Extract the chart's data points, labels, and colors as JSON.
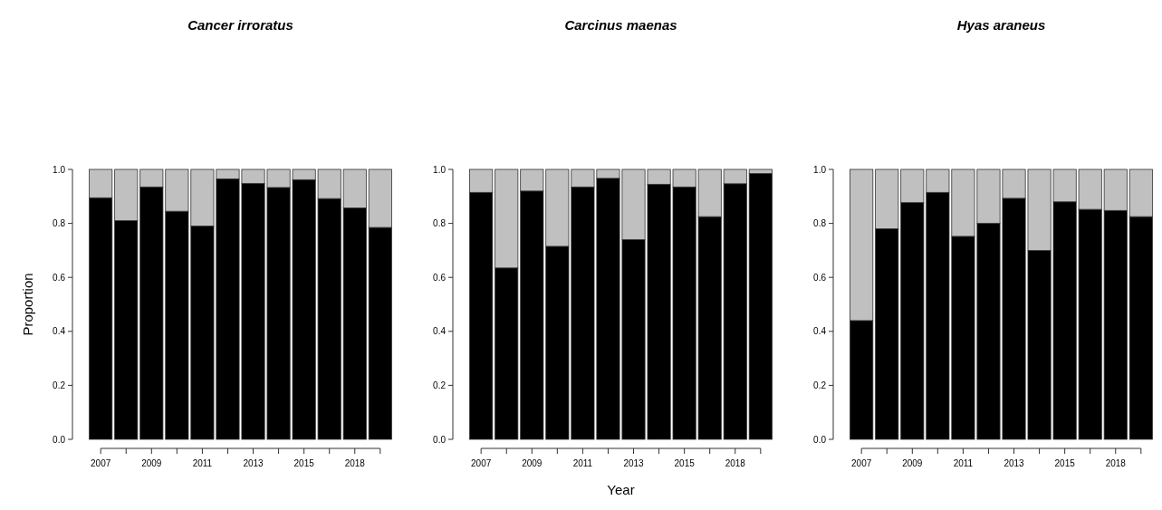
{
  "chart_data": [
    {
      "type": "bar",
      "title": "Cancer irroratus",
      "ylabel": "Proportion",
      "stacked": true,
      "categories": [
        "2007",
        null,
        "2009",
        null,
        "2011",
        null,
        "2013",
        null,
        "2015",
        null,
        "2018",
        null
      ],
      "ylim": [
        0,
        1
      ],
      "yticks": [
        {
          "value": 0,
          "label": "0.0"
        },
        {
          "value": 0.2,
          "label": "0.2"
        },
        {
          "value": 0.4,
          "label": "0.4"
        },
        {
          "value": 0.6,
          "label": "0.6"
        },
        {
          "value": 0.8,
          "label": "0.8"
        },
        {
          "value": 1,
          "label": "1.0"
        }
      ],
      "series": [
        {
          "color": "#000000",
          "values": [
            0.895,
            0.81,
            0.935,
            0.845,
            0.79,
            0.965,
            0.948,
            0.933,
            0.962,
            0.892,
            0.857,
            0.785
          ]
        },
        {
          "color": "#c0c0c0",
          "values": [
            0.105,
            0.19,
            0.065,
            0.155,
            0.21,
            0.035,
            0.052,
            0.067,
            0.038,
            0.108,
            0.143,
            0.215
          ]
        }
      ]
    },
    {
      "type": "bar",
      "title": "Carcinus maenas",
      "xlabel": "Year",
      "stacked": true,
      "categories": [
        "2007",
        null,
        "2009",
        null,
        "2011",
        null,
        "2013",
        null,
        "2015",
        null,
        "2018",
        null
      ],
      "ylim": [
        0,
        1
      ],
      "yticks": [
        {
          "value": 0,
          "label": "0.0"
        },
        {
          "value": 0.2,
          "label": "0.2"
        },
        {
          "value": 0.4,
          "label": "0.4"
        },
        {
          "value": 0.6,
          "label": "0.6"
        },
        {
          "value": 0.8,
          "label": "0.8"
        },
        {
          "value": 1,
          "label": "1.0"
        }
      ],
      "series": [
        {
          "color": "#000000",
          "values": [
            0.915,
            0.635,
            0.92,
            0.715,
            0.935,
            0.967,
            0.74,
            0.945,
            0.935,
            0.825,
            0.947,
            0.985
          ]
        },
        {
          "color": "#c0c0c0",
          "values": [
            0.085,
            0.365,
            0.08,
            0.285,
            0.065,
            0.033,
            0.26,
            0.055,
            0.065,
            0.175,
            0.053,
            0.015
          ]
        }
      ]
    },
    {
      "type": "bar",
      "title": "Hyas araneus",
      "stacked": true,
      "categories": [
        "2007",
        null,
        "2009",
        null,
        "2011",
        null,
        "2013",
        null,
        "2015",
        null,
        "2018",
        null
      ],
      "ylim": [
        0,
        1
      ],
      "yticks": [
        {
          "value": 0,
          "label": "0.0"
        },
        {
          "value": 0.2,
          "label": "0.2"
        },
        {
          "value": 0.4,
          "label": "0.4"
        },
        {
          "value": 0.6,
          "label": "0.6"
        },
        {
          "value": 0.8,
          "label": "0.8"
        },
        {
          "value": 1,
          "label": "1.0"
        }
      ],
      "series": [
        {
          "color": "#000000",
          "values": [
            0.44,
            0.78,
            0.877,
            0.915,
            0.752,
            0.8,
            0.893,
            0.7,
            0.88,
            0.852,
            0.848,
            0.825
          ]
        },
        {
          "color": "#c0c0c0",
          "values": [
            0.56,
            0.22,
            0.123,
            0.085,
            0.248,
            0.2,
            0.107,
            0.3,
            0.12,
            0.148,
            0.152,
            0.175
          ]
        }
      ]
    }
  ]
}
